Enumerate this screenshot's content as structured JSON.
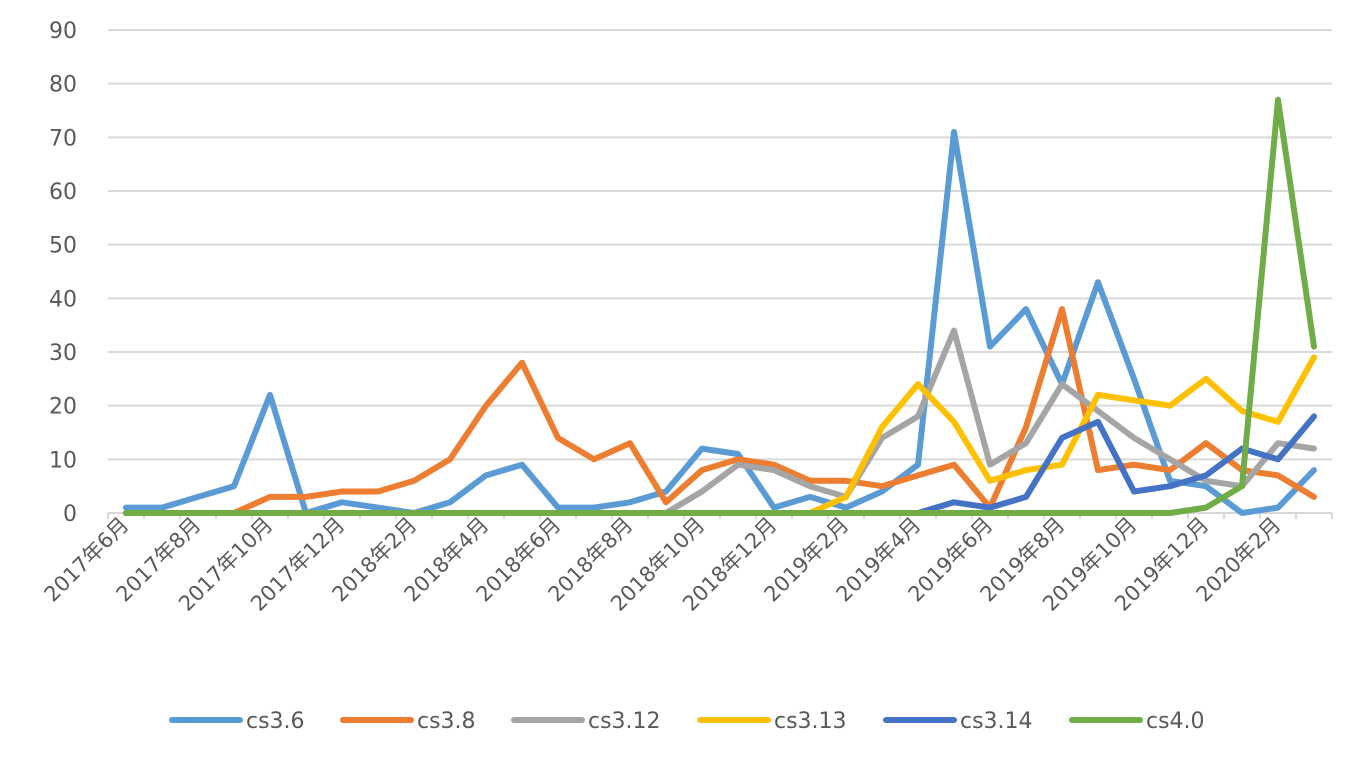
{
  "chart_data": {
    "type": "line",
    "title": "",
    "xlabel": "",
    "ylabel": "",
    "ylim": [
      0,
      90
    ],
    "y_ticks": [
      "0",
      "10",
      "20",
      "30",
      "40",
      "50",
      "60",
      "70",
      "80",
      "90"
    ],
    "x": [
      "2017年6月",
      "2017年7月",
      "2017年8月",
      "2017年9月",
      "2017年10月",
      "2017年11月",
      "2017年12月",
      "2018年1月",
      "2018年2月",
      "2018年3月",
      "2018年4月",
      "2018年5月",
      "2018年6月",
      "2018年7月",
      "2018年8月",
      "2018年9月",
      "2018年10月",
      "2018年11月",
      "2018年12月",
      "2019年1月",
      "2019年2月",
      "2019年3月",
      "2019年4月",
      "2019年5月",
      "2019年6月",
      "2019年7月",
      "2019年8月",
      "2019年9月",
      "2019年10月",
      "2019年11月",
      "2019年12月",
      "2020年1月",
      "2020年2月",
      "2020年3月"
    ],
    "x_tick_labels": [
      "2017年6月",
      "2017年8月",
      "2017年10月",
      "2017年12月",
      "2018年2月",
      "2018年4月",
      "2018年6月",
      "2018年8月",
      "2018年10月",
      "2018年12月",
      "2019年2月",
      "2019年4月",
      "2019年6月",
      "2019年8月",
      "2019年10月",
      "2019年12月",
      "2020年2月"
    ],
    "grid": true,
    "legend_position": "bottom",
    "series": [
      {
        "name": "cs3.6",
        "color": "#5B9BD5",
        "values": [
          1,
          1,
          3,
          5,
          22,
          0,
          2,
          1,
          0,
          2,
          7,
          9,
          1,
          1,
          2,
          4,
          12,
          11,
          1,
          3,
          1,
          4,
          9,
          71,
          31,
          38,
          24,
          43,
          25,
          6,
          5,
          0,
          1,
          8
        ]
      },
      {
        "name": "cs3.8",
        "color": "#ED7D31",
        "values": [
          0,
          0,
          0,
          0,
          3,
          3,
          4,
          4,
          6,
          10,
          20,
          28,
          14,
          10,
          13,
          2,
          8,
          10,
          9,
          6,
          6,
          5,
          7,
          9,
          1,
          16,
          38,
          8,
          9,
          8,
          13,
          8,
          7,
          3
        ]
      },
      {
        "name": "cs3.12",
        "color": "#A5A5A5",
        "values": [
          0,
          0,
          0,
          0,
          0,
          0,
          0,
          0,
          0,
          0,
          0,
          0,
          0,
          0,
          0,
          0,
          4,
          9,
          8,
          5,
          3,
          14,
          18,
          34,
          9,
          13,
          24,
          19,
          14,
          10,
          6,
          5,
          13,
          12
        ]
      },
      {
        "name": "cs3.13",
        "color": "#FFC000",
        "values": [
          0,
          0,
          0,
          0,
          0,
          0,
          0,
          0,
          0,
          0,
          0,
          0,
          0,
          0,
          0,
          0,
          0,
          0,
          0,
          0,
          3,
          16,
          24,
          17,
          6,
          8,
          9,
          22,
          21,
          20,
          25,
          19,
          17,
          29
        ]
      },
      {
        "name": "cs3.14",
        "color": "#4472C4",
        "values": [
          0,
          0,
          0,
          0,
          0,
          0,
          0,
          0,
          0,
          0,
          0,
          0,
          0,
          0,
          0,
          0,
          0,
          0,
          0,
          0,
          0,
          0,
          0,
          2,
          1,
          3,
          14,
          17,
          4,
          5,
          7,
          12,
          10,
          18
        ]
      },
      {
        "name": "cs4.0",
        "color": "#70AD47",
        "values": [
          0,
          0,
          0,
          0,
          0,
          0,
          0,
          0,
          0,
          0,
          0,
          0,
          0,
          0,
          0,
          0,
          0,
          0,
          0,
          0,
          0,
          0,
          0,
          0,
          0,
          0,
          0,
          0,
          0,
          0,
          1,
          5,
          77,
          31
        ]
      }
    ]
  }
}
